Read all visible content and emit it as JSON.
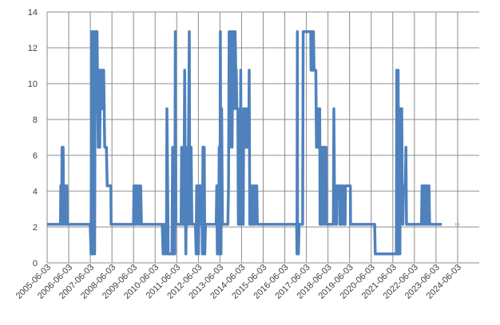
{
  "chart_data": {
    "type": "line",
    "title": "",
    "xlabel": "",
    "ylabel": "",
    "ylim": [
      0,
      14
    ],
    "y_ticks": [
      0,
      2,
      4,
      6,
      8,
      10,
      12,
      14
    ],
    "y_tick_labels": [
      "0",
      "2",
      "4",
      "6",
      "8",
      "10",
      "12",
      "14"
    ],
    "x_start": "2005-06-03",
    "x_end": "2025-06-03",
    "x_ticks": [
      "2005-06-03",
      "2006-06-03",
      "2007-06-03",
      "2008-06-03",
      "2009-06-03",
      "2010-06-03",
      "2011-06-03",
      "2012-06-03",
      "2013-06-03",
      "2014-06-03",
      "2015-06-03",
      "2016-06-03",
      "2017-06-03",
      "2018-06-03",
      "2019-06-03",
      "2020-06-03",
      "2021-06-03",
      "2022-06-03",
      "2023-06-03",
      "2024-06-03"
    ],
    "grid": {
      "horizontal": true,
      "vertical": true
    },
    "colors": {
      "series": "#4F81BD",
      "grid": "#8c8c8c",
      "text": "#404040",
      "background": "#ffffff"
    },
    "series": [
      {
        "points": [
          [
            "2005-06-03",
            2.15
          ],
          [
            "2006-01-15",
            2.15
          ],
          [
            "2006-01-20",
            4.3
          ],
          [
            "2006-02-01",
            2.15
          ],
          [
            "2006-02-10",
            6.45
          ],
          [
            "2006-02-20",
            2.15
          ],
          [
            "2006-03-01",
            6.45
          ],
          [
            "2006-03-10",
            2.15
          ],
          [
            "2006-03-20",
            4.3
          ],
          [
            "2006-04-01",
            2.15
          ],
          [
            "2006-04-10",
            4.3
          ],
          [
            "2006-04-20",
            2.15
          ],
          [
            "2006-05-01",
            4.3
          ],
          [
            "2006-05-10",
            2.15
          ],
          [
            "2007-06-01",
            2.15
          ],
          [
            "2007-06-15",
            0.5
          ],
          [
            "2007-06-25",
            12.9
          ],
          [
            "2007-07-05",
            0.5
          ],
          [
            "2007-07-15",
            12.9
          ],
          [
            "2007-07-25",
            0.5
          ],
          [
            "2007-08-05",
            12.9
          ],
          [
            "2007-08-15",
            0.5
          ],
          [
            "2007-08-25",
            12.9
          ],
          [
            "2007-09-15",
            12.9
          ],
          [
            "2007-09-25",
            12.9
          ],
          [
            "2007-10-15",
            6.45
          ],
          [
            "2007-10-20",
            10.75
          ],
          [
            "2007-10-25",
            6.45
          ],
          [
            "2007-11-01",
            10.75
          ],
          [
            "2007-11-10",
            6.45
          ],
          [
            "2007-11-20",
            10.75
          ],
          [
            "2007-12-01",
            8.6
          ],
          [
            "2007-12-10",
            10.75
          ],
          [
            "2007-12-20",
            8.6
          ],
          [
            "2008-01-01",
            10.75
          ],
          [
            "2008-01-15",
            10.75
          ],
          [
            "2008-02-01",
            6.45
          ],
          [
            "2008-03-01",
            6.45
          ],
          [
            "2008-03-15",
            4.3
          ],
          [
            "2008-05-15",
            4.3
          ],
          [
            "2008-05-20",
            2.15
          ],
          [
            "2009-06-01",
            2.15
          ],
          [
            "2009-06-10",
            4.3
          ],
          [
            "2009-06-20",
            2.15
          ],
          [
            "2009-07-01",
            4.3
          ],
          [
            "2009-07-15",
            2.15
          ],
          [
            "2009-08-01",
            4.3
          ],
          [
            "2009-08-15",
            2.15
          ],
          [
            "2009-09-01",
            4.3
          ],
          [
            "2009-09-15",
            2.15
          ],
          [
            "2009-10-01",
            4.3
          ],
          [
            "2009-10-15",
            2.15
          ],
          [
            "2010-10-01",
            2.15
          ],
          [
            "2010-10-15",
            0.5
          ],
          [
            "2010-11-01",
            2.15
          ],
          [
            "2010-11-15",
            0.5
          ],
          [
            "2010-12-10",
            0.5
          ],
          [
            "2010-12-20",
            8.6
          ],
          [
            "2011-01-01",
            4.3
          ],
          [
            "2011-01-10",
            0.5
          ],
          [
            "2011-03-15",
            0.5
          ],
          [
            "2011-03-25",
            6.45
          ],
          [
            "2011-04-01",
            0.5
          ],
          [
            "2011-05-01",
            0.5
          ],
          [
            "2011-05-10",
            12.9
          ],
          [
            "2011-05-20",
            2.15
          ],
          [
            "2011-08-15",
            2.15
          ],
          [
            "2011-08-25",
            6.45
          ],
          [
            "2011-09-05",
            2.15
          ],
          [
            "2011-09-15",
            4.3
          ],
          [
            "2011-09-25",
            2.15
          ],
          [
            "2011-10-05",
            4.3
          ],
          [
            "2011-10-15",
            10.75
          ],
          [
            "2011-10-25",
            4.3
          ],
          [
            "2011-11-05",
            0.5
          ],
          [
            "2011-11-15",
            4.3
          ],
          [
            "2011-12-01",
            6.45
          ],
          [
            "2011-12-10",
            2.15
          ],
          [
            "2012-01-01",
            12.9
          ],
          [
            "2012-01-10",
            2.15
          ],
          [
            "2012-02-01",
            6.45
          ],
          [
            "2012-02-15",
            2.15
          ],
          [
            "2012-04-15",
            2.15
          ],
          [
            "2012-04-25",
            0.5
          ],
          [
            "2012-05-05",
            4.3
          ],
          [
            "2012-05-15",
            2.15
          ],
          [
            "2012-05-25",
            4.3
          ],
          [
            "2012-06-05",
            0.5
          ],
          [
            "2012-06-15",
            4.3
          ],
          [
            "2012-07-01",
            2.15
          ],
          [
            "2012-07-15",
            4.3
          ],
          [
            "2012-08-01",
            4.3
          ],
          [
            "2012-08-10",
            0.5
          ],
          [
            "2012-08-20",
            6.45
          ],
          [
            "2012-09-01",
            0.5
          ],
          [
            "2012-09-10",
            6.45
          ],
          [
            "2012-09-20",
            0.5
          ],
          [
            "2012-10-01",
            2.15
          ],
          [
            "2013-04-01",
            2.15
          ],
          [
            "2013-04-10",
            4.3
          ],
          [
            "2013-04-20",
            0.5
          ],
          [
            "2013-05-01",
            4.3
          ],
          [
            "2013-05-10",
            0.5
          ],
          [
            "2013-05-20",
            6.45
          ],
          [
            "2013-06-01",
            0.5
          ],
          [
            "2013-06-10",
            12.9
          ],
          [
            "2013-06-20",
            0.5
          ],
          [
            "2013-07-01",
            8.6
          ],
          [
            "2013-07-15",
            2.15
          ],
          [
            "2013-10-15",
            2.15
          ],
          [
            "2013-10-25",
            4.3
          ],
          [
            "2013-11-05",
            12.9
          ],
          [
            "2013-11-15",
            6.45
          ],
          [
            "2013-11-25",
            12.9
          ],
          [
            "2013-12-05",
            8.6
          ],
          [
            "2013-12-15",
            12.9
          ],
          [
            "2013-12-25",
            6.45
          ],
          [
            "2014-01-05",
            12.9
          ],
          [
            "2014-01-15",
            10.75
          ],
          [
            "2014-01-25",
            12.9
          ],
          [
            "2014-02-05",
            8.6
          ],
          [
            "2014-02-15",
            12.9
          ],
          [
            "2014-02-25",
            10.75
          ],
          [
            "2014-03-05",
            10.75
          ],
          [
            "2014-03-15",
            8.6
          ],
          [
            "2014-04-01",
            8.6
          ],
          [
            "2014-04-10",
            2.15
          ],
          [
            "2014-05-10",
            2.15
          ],
          [
            "2014-05-20",
            10.75
          ],
          [
            "2014-06-01",
            2.15
          ],
          [
            "2014-07-01",
            2.15
          ],
          [
            "2014-07-10",
            8.6
          ],
          [
            "2014-07-20",
            6.45
          ],
          [
            "2014-08-01",
            8.6
          ],
          [
            "2014-08-10",
            6.45
          ],
          [
            "2014-08-20",
            8.6
          ],
          [
            "2014-09-01",
            6.45
          ],
          [
            "2014-09-10",
            8.6
          ],
          [
            "2014-09-20",
            6.45
          ],
          [
            "2014-10-01",
            6.45
          ],
          [
            "2014-10-10",
            10.75
          ],
          [
            "2014-10-20",
            2.15
          ],
          [
            "2014-11-15",
            2.15
          ],
          [
            "2014-11-25",
            4.3
          ],
          [
            "2014-12-05",
            2.15
          ],
          [
            "2014-12-15",
            4.3
          ],
          [
            "2014-12-25",
            2.15
          ],
          [
            "2015-01-05",
            4.3
          ],
          [
            "2015-01-15",
            2.15
          ],
          [
            "2015-01-25",
            4.3
          ],
          [
            "2015-02-15",
            4.3
          ],
          [
            "2015-02-25",
            2.15
          ],
          [
            "2016-12-20",
            2.15
          ],
          [
            "2016-12-25",
            0.5
          ],
          [
            "2017-01-01",
            12.9
          ],
          [
            "2017-01-05",
            0.5
          ],
          [
            "2017-01-10",
            2.15
          ],
          [
            "2017-01-20",
            0.5
          ],
          [
            "2017-01-30",
            2.15
          ],
          [
            "2017-04-01",
            2.15
          ],
          [
            "2017-04-10",
            12.9
          ],
          [
            "2017-08-15",
            12.9
          ],
          [
            "2017-08-20",
            10.75
          ],
          [
            "2017-08-28",
            12.9
          ],
          [
            "2017-09-05",
            10.75
          ],
          [
            "2017-09-12",
            12.9
          ],
          [
            "2017-09-20",
            10.75
          ],
          [
            "2017-10-01",
            12.9
          ],
          [
            "2017-10-10",
            10.75
          ],
          [
            "2017-11-10",
            10.75
          ],
          [
            "2017-11-20",
            6.45
          ],
          [
            "2017-11-28",
            8.6
          ],
          [
            "2017-12-05",
            6.45
          ],
          [
            "2017-12-15",
            8.6
          ],
          [
            "2017-12-25",
            6.45
          ],
          [
            "2018-01-01",
            8.6
          ],
          [
            "2018-01-15",
            8.6
          ],
          [
            "2018-01-20",
            2.15
          ],
          [
            "2018-02-15",
            2.15
          ],
          [
            "2018-02-20",
            6.45
          ],
          [
            "2018-03-01",
            2.15
          ],
          [
            "2018-03-10",
            6.45
          ],
          [
            "2018-03-20",
            4.3
          ],
          [
            "2018-04-01",
            6.45
          ],
          [
            "2018-04-10",
            2.15
          ],
          [
            "2018-04-20",
            6.45
          ],
          [
            "2018-05-01",
            6.45
          ],
          [
            "2018-05-05",
            2.15
          ],
          [
            "2018-09-01",
            2.15
          ],
          [
            "2018-09-10",
            8.6
          ],
          [
            "2018-09-20",
            4.3
          ],
          [
            "2018-10-01",
            4.3
          ],
          [
            "2018-10-10",
            2.15
          ],
          [
            "2018-10-25",
            2.15
          ],
          [
            "2018-11-01",
            4.3
          ],
          [
            "2018-12-15",
            4.3
          ],
          [
            "2018-12-20",
            2.15
          ],
          [
            "2019-01-10",
            2.15
          ],
          [
            "2019-01-15",
            4.3
          ],
          [
            "2019-02-10",
            4.3
          ],
          [
            "2019-02-15",
            2.15
          ],
          [
            "2019-03-20",
            2.15
          ],
          [
            "2019-03-25",
            4.3
          ],
          [
            "2019-06-15",
            4.3
          ],
          [
            "2019-06-20",
            2.15
          ],
          [
            "2020-08-01",
            2.15
          ],
          [
            "2020-08-10",
            0.5
          ],
          [
            "2021-08-01",
            0.5
          ],
          [
            "2021-08-10",
            10.75
          ],
          [
            "2021-08-20",
            0.5
          ],
          [
            "2021-09-01",
            10.75
          ],
          [
            "2021-09-10",
            0.5
          ],
          [
            "2021-09-20",
            8.6
          ],
          [
            "2021-10-01",
            0.5
          ],
          [
            "2021-10-10",
            8.6
          ],
          [
            "2021-11-01",
            8.6
          ],
          [
            "2021-11-10",
            4.3
          ],
          [
            "2021-11-20",
            2.15
          ],
          [
            "2021-12-01",
            4.3
          ],
          [
            "2022-01-01",
            4.3
          ],
          [
            "2022-01-10",
            6.45
          ],
          [
            "2022-01-20",
            2.15
          ],
          [
            "2022-10-01",
            2.15
          ],
          [
            "2022-10-10",
            4.3
          ],
          [
            "2022-10-20",
            2.15
          ],
          [
            "2022-11-01",
            4.3
          ],
          [
            "2022-11-10",
            2.15
          ],
          [
            "2022-11-20",
            4.3
          ],
          [
            "2022-12-01",
            2.15
          ],
          [
            "2022-12-10",
            4.3
          ],
          [
            "2022-12-20",
            2.15
          ],
          [
            "2023-01-01",
            4.3
          ],
          [
            "2023-01-10",
            2.15
          ],
          [
            "2023-01-25",
            2.15
          ],
          [
            "2023-02-05",
            4.3
          ],
          [
            "2023-02-15",
            2.15
          ],
          [
            "2023-09-10",
            2.15
          ]
        ],
        "points_after_gap": [
          [
            "2024-05-01",
            2.15
          ],
          [
            "2024-05-10",
            2.15
          ]
        ],
        "points_after_gap_2": [
          [
            "2024-06-15",
            2.15
          ],
          [
            "2024-06-25",
            2.15
          ]
        ]
      }
    ]
  }
}
